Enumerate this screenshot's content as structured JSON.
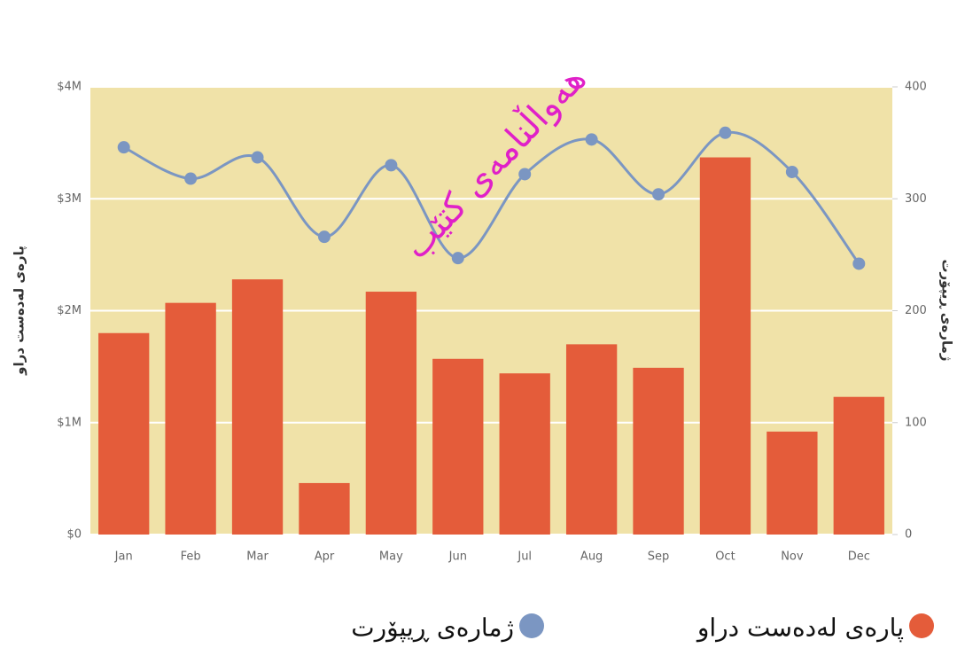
{
  "chart_data": {
    "type": "bar",
    "categories": [
      "Jan",
      "Feb",
      "Mar",
      "Apr",
      "May",
      "Jun",
      "Jul",
      "Aug",
      "Sep",
      "Oct",
      "Nov",
      "Dec"
    ],
    "series": [
      {
        "name": "پارەی لەدەست دراو",
        "type": "bar",
        "color": "#e45c3a",
        "values": [
          1800000,
          2070000,
          2280000,
          460000,
          2170000,
          1570000,
          1440000,
          1700000,
          1490000,
          3370000,
          920000,
          1230000
        ]
      },
      {
        "name": "ژمارەی ڕیپۆرت",
        "type": "line",
        "axis": "y2",
        "color": "#7b96c2",
        "values": [
          346,
          318,
          337,
          266,
          330,
          247,
          322,
          353,
          304,
          359,
          324,
          242
        ]
      }
    ],
    "ylabel": "پارەی لەدەست دراو",
    "y2label": "ژمارەی ڕیپۆرت",
    "ylim": [
      0,
      4000000
    ],
    "yticks": [
      {
        "value": 0,
        "label": "$0"
      },
      {
        "value": 1000000,
        "label": "$1M"
      },
      {
        "value": 2000000,
        "label": "$2M"
      },
      {
        "value": 3000000,
        "label": "$3M"
      },
      {
        "value": 4000000,
        "label": "$4M"
      }
    ],
    "y2lim": [
      0,
      400
    ],
    "y2ticks": [
      0,
      100,
      200,
      300,
      400
    ],
    "grid": true,
    "plot_background": "#f0e2a8"
  },
  "watermark": "هەواڵنامەی کتێب"
}
